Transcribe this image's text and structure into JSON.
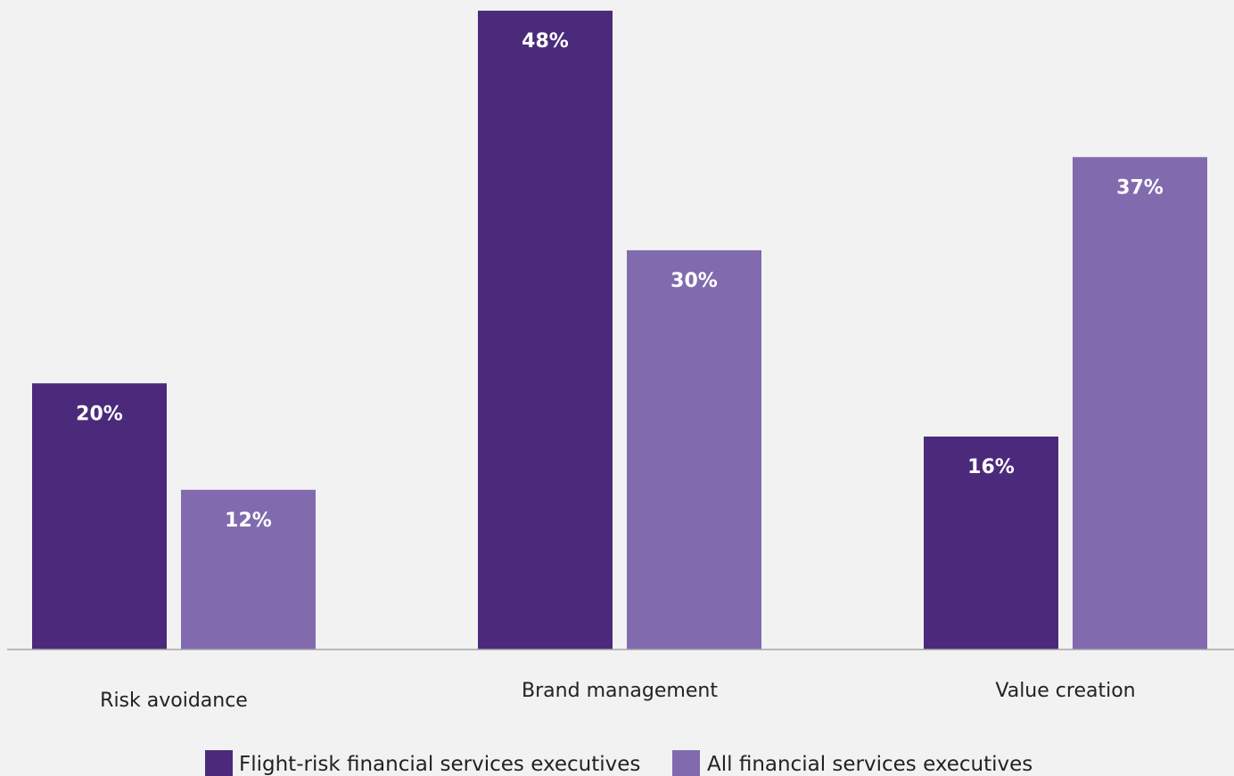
{
  "chart_data": {
    "type": "bar",
    "categories": [
      "Risk avoidance",
      "Brand management",
      "Value creation"
    ],
    "series": [
      {
        "name": "Flight-risk financial services executives",
        "values": [
          20,
          48,
          16
        ],
        "labels": [
          "20%",
          "48%",
          "16%"
        ],
        "color": "#4b2a7b"
      },
      {
        "name": "All financial services executives",
        "values": [
          12,
          30,
          37
        ],
        "labels": [
          "12%",
          "30%",
          "37%"
        ],
        "color": "#816bae"
      }
    ],
    "ylim": [
      0,
      48
    ],
    "grid": false,
    "legend_position": "bottom-center",
    "baseline_color": "#a6a6a6",
    "background_color": "#f2f2f2"
  }
}
